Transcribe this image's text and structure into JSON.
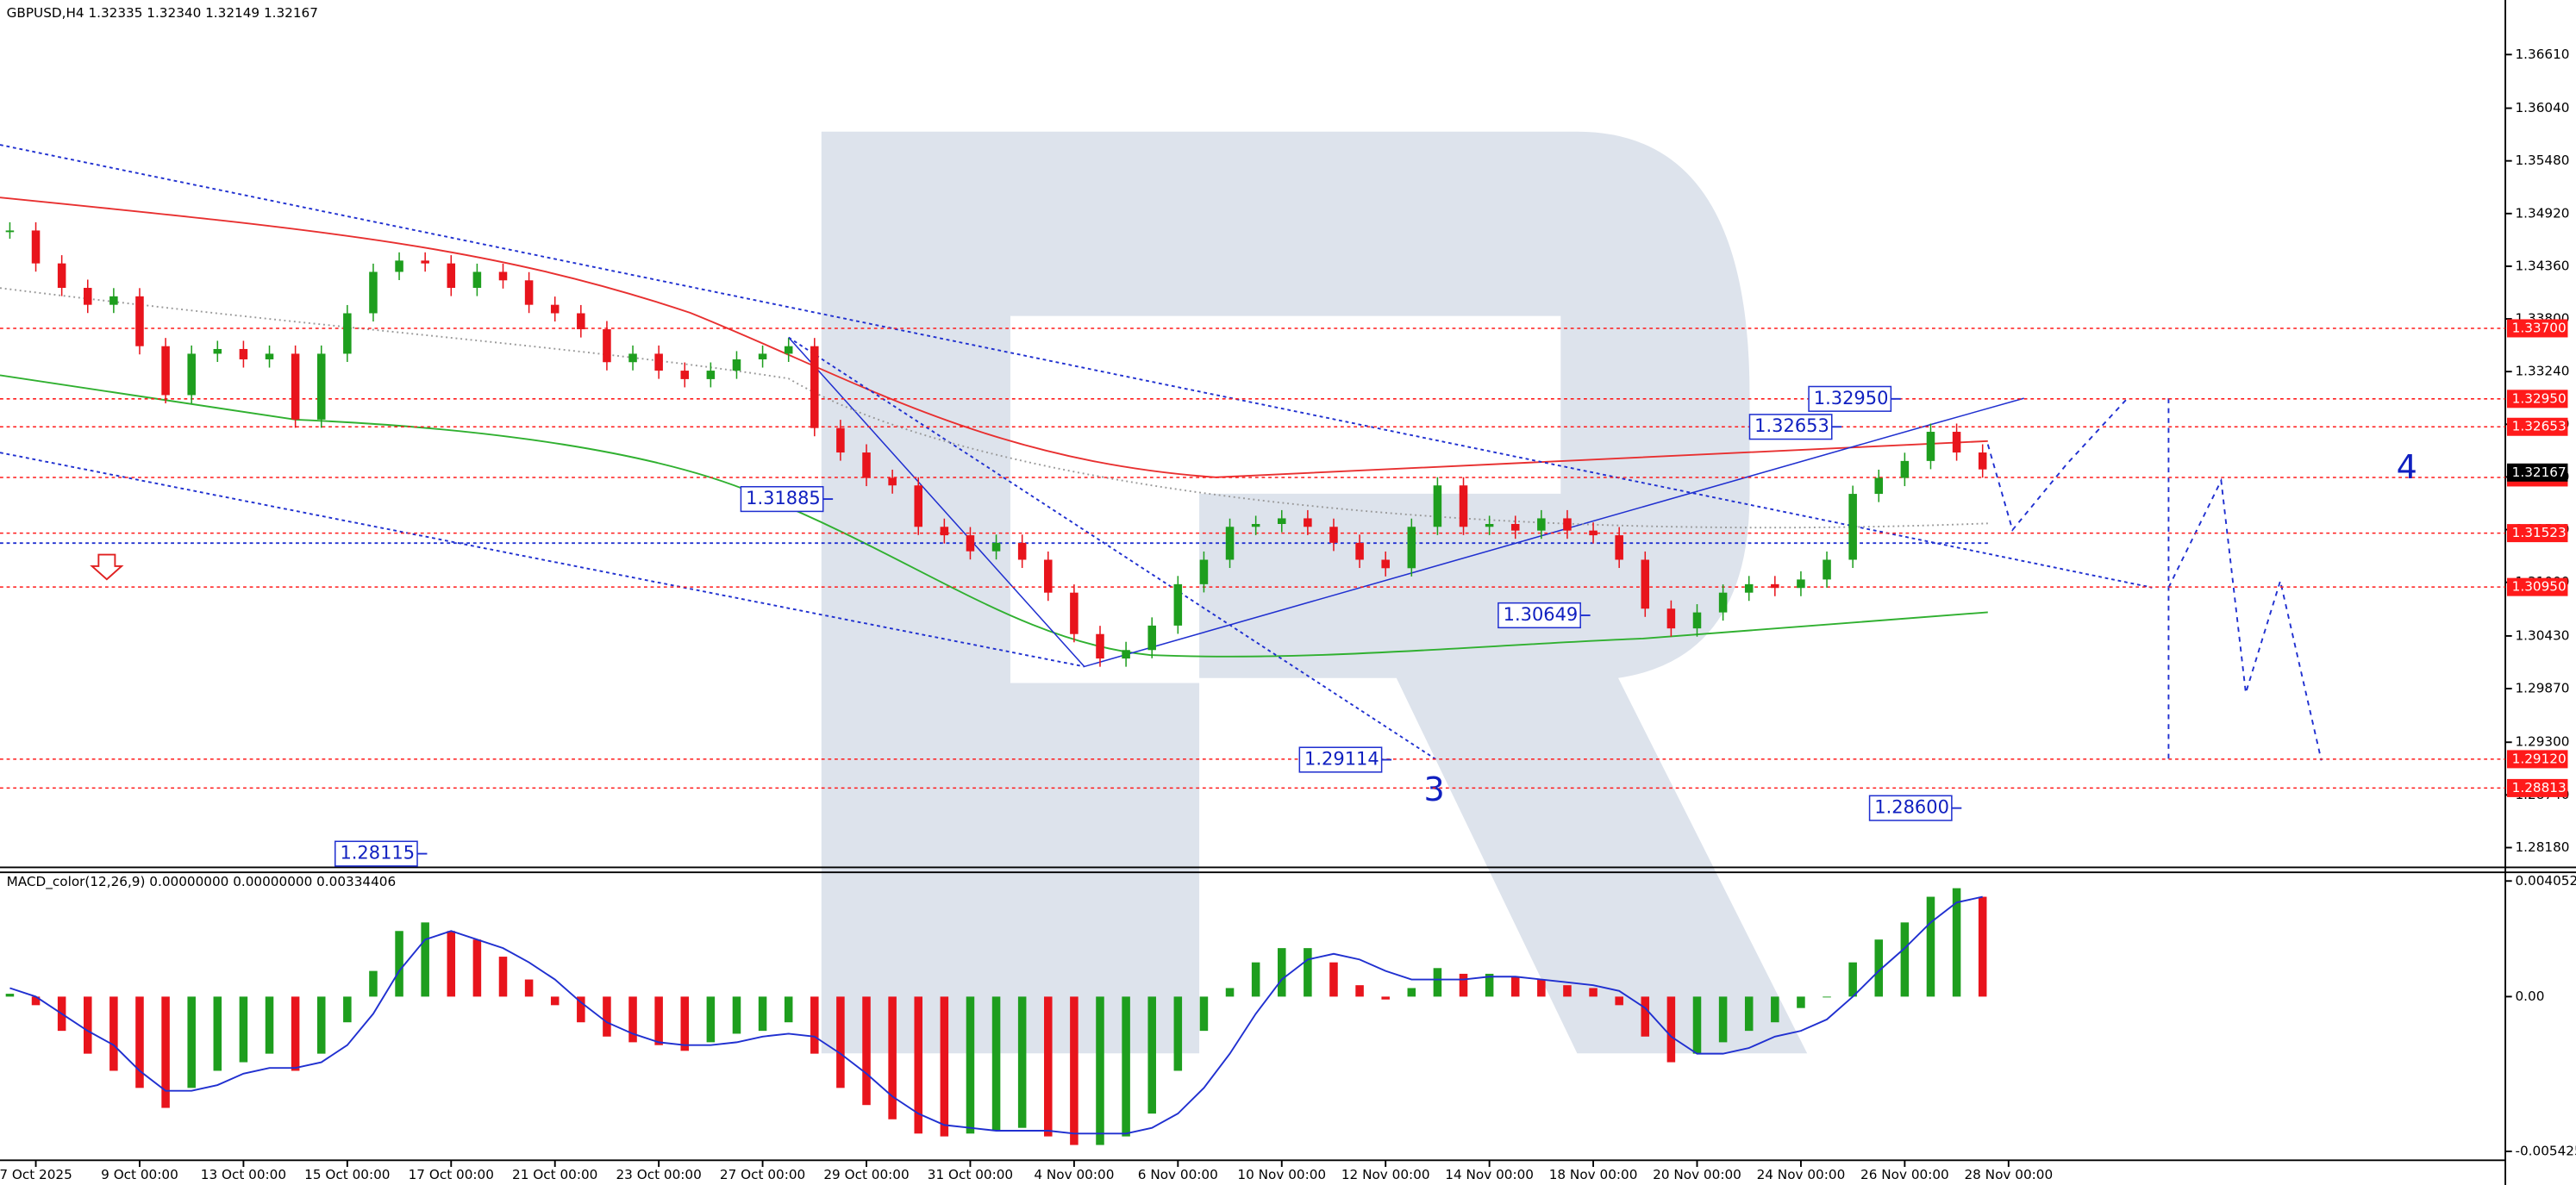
{
  "chart_data": [
    {
      "type": "candlestick",
      "title": "GBPUSD,H4  1.32335 1.32340 1.32149 1.32167",
      "up_color": "#1e9e1e",
      "down_color": "#e8141c",
      "categories": [
        null,
        "7 Oct 2025",
        null,
        null,
        null,
        "9 Oct 00:00",
        null,
        null,
        null,
        "13 Oct 00:00",
        null,
        null,
        null,
        "15 Oct 00:00",
        null,
        null,
        null,
        "17 Oct 00:00",
        null,
        null,
        null,
        "21 Oct 00:00",
        null,
        null,
        null,
        "23 Oct 00:00",
        null,
        null,
        null,
        "27 Oct 00:00",
        null,
        null,
        null,
        "29 Oct 00:00",
        null,
        null,
        null,
        "31 Oct 00:00",
        null,
        null,
        null,
        "4 Nov 00:00",
        null,
        null,
        null,
        "6 Nov 00:00",
        null,
        null,
        null,
        "10 Nov 00:00",
        null,
        null,
        null,
        "12 Nov 00:00",
        null,
        null,
        null,
        "14 Nov 00:00",
        null,
        null,
        null,
        "18 Nov 00:00",
        null,
        null,
        null,
        "20 Nov 00:00",
        null,
        null,
        null,
        "24 Nov 00:00",
        null,
        null,
        null,
        "26 Nov 00:00",
        null,
        null,
        null,
        "28 Nov 00:00"
      ],
      "closes": [
        1.3474,
        1.3439,
        1.3413,
        1.3395,
        1.3404,
        1.3351,
        1.3299,
        1.3343,
        1.3348,
        1.3337,
        1.3343,
        1.3273,
        1.3343,
        1.3386,
        1.343,
        1.3442,
        1.3439,
        1.3413,
        1.343,
        1.3421,
        1.3395,
        1.3386,
        1.3369,
        1.3334,
        1.3343,
        1.3325,
        1.3316,
        1.3325,
        1.3337,
        1.3343,
        1.3351,
        1.3264,
        1.3238,
        1.3211,
        1.3203,
        1.3159,
        1.315,
        1.3133,
        1.3142,
        1.3124,
        1.3089,
        1.3045,
        1.3019,
        1.3028,
        1.3054,
        1.3098,
        1.3124,
        1.3159,
        1.3162,
        1.3168,
        1.3159,
        1.3142,
        1.3124,
        1.3115,
        1.3159,
        1.3203,
        1.3159,
        1.3162,
        1.3155,
        1.3168,
        1.3155,
        1.315,
        1.3124,
        1.3072,
        1.3051,
        1.3068,
        1.3089,
        1.3098,
        1.3094,
        1.3103,
        1.3124,
        1.3194,
        1.3211,
        1.3229,
        1.326,
        1.3238,
        1.322,
        null
      ],
      "ylim": [
        1.2797,
        1.3719
      ],
      "yticks": [
        {
          "value": 1.3661,
          "label": "1.36610"
        },
        {
          "value": 1.3604,
          "label": "1.36040"
        },
        {
          "value": 1.3548,
          "label": "1.35480"
        },
        {
          "value": 1.3492,
          "label": "1.34920"
        },
        {
          "value": 1.3436,
          "label": "1.34360"
        },
        {
          "value": 1.338,
          "label": "1.33800"
        },
        {
          "value": 1.3324,
          "label": "1.33240"
        },
        {
          "value": 1.3268,
          "label": "1.32680"
        },
        {
          "value": 1.3212,
          "label": "1.32120"
        },
        {
          "value": 1.3156,
          "label": "1.31560"
        },
        {
          "value": 1.31,
          "label": "1.31000"
        },
        {
          "value": 1.3043,
          "label": "1.30430"
        },
        {
          "value": 1.2987,
          "label": "1.29870"
        },
        {
          "value": 1.293,
          "label": "1.29300"
        },
        {
          "value": 1.2874,
          "label": "1.28740"
        },
        {
          "value": 1.2818,
          "label": "1.28180"
        }
      ],
      "levels": [
        {
          "value": 1.337,
          "label": "1.33700"
        },
        {
          "value": 1.3295,
          "label": "1.32950"
        },
        {
          "value": 1.32653,
          "label": "1.32653"
        },
        {
          "value": 1.32115,
          "label": "1.32115"
        },
        {
          "value": 1.31523,
          "label": "1.31523"
        },
        {
          "value": 1.3095,
          "label": "1.30950"
        },
        {
          "value": 1.2912,
          "label": "1.29120"
        },
        {
          "value": 1.28813,
          "label": "1.28813"
        }
      ],
      "level_color": "#ff1a1a",
      "current_price": {
        "value": 1.32167,
        "label": "1.32167"
      },
      "annotations": [
        {
          "value": 1.3295,
          "label": "1.32950"
        },
        {
          "value": 1.32653,
          "label": "1.32653"
        },
        {
          "value": 1.31885,
          "label": "1.31885"
        },
        {
          "value": 1.30649,
          "label": "1.30649"
        },
        {
          "value": 1.29114,
          "label": "1.29114"
        },
        {
          "value": 1.286,
          "label": "1.28600"
        },
        {
          "value": 1.28115,
          "label": "1.28115"
        }
      ],
      "wave_labels": [
        "3",
        "4"
      ]
    },
    {
      "type": "macd",
      "title": "MACD_color(12,26,9) 0.00000000 0.00000000 0.00334406",
      "up_color": "#1e9e1e",
      "down_color": "#e8141c",
      "signal_color": "#2030d0",
      "values": [
        0.0001,
        -0.0003,
        -0.0012,
        -0.002,
        -0.0026,
        -0.0032,
        -0.0039,
        -0.0032,
        -0.0026,
        -0.0023,
        -0.002,
        -0.0026,
        -0.002,
        -0.0009,
        0.0009,
        0.0023,
        0.0026,
        0.0023,
        0.002,
        0.0014,
        0.0006,
        -0.0003,
        -0.0009,
        -0.0014,
        -0.0016,
        -0.0017,
        -0.0019,
        -0.0016,
        -0.0013,
        -0.0012,
        -0.0009,
        -0.002,
        -0.0032,
        -0.0038,
        -0.0043,
        -0.0048,
        -0.0049,
        -0.0048,
        -0.0047,
        -0.0046,
        -0.0049,
        -0.0052,
        -0.0052,
        -0.0049,
        -0.0041,
        -0.0026,
        -0.0012,
        0.0003,
        0.0012,
        0.0017,
        0.0017,
        0.0012,
        0.0004,
        -0.0001,
        0.0003,
        0.001,
        0.0008,
        0.0008,
        0.0007,
        0.0006,
        0.0004,
        0.0003,
        -0.0003,
        -0.0014,
        -0.0023,
        -0.002,
        -0.0016,
        -0.0012,
        -0.0009,
        -0.0004,
        0,
        0.0012,
        0.002,
        0.0026,
        0.0035,
        0.0038,
        0.0035,
        null
      ],
      "signal": [
        0.0003,
        0,
        -0.0006,
        -0.0012,
        -0.0017,
        -0.0026,
        -0.0033,
        -0.0033,
        -0.0031,
        -0.0027,
        -0.0025,
        -0.0025,
        -0.0023,
        -0.0017,
        -0.0006,
        0.0009,
        0.002,
        0.0023,
        0.002,
        0.0017,
        0.0012,
        0.0006,
        -0.0002,
        -0.0009,
        -0.0013,
        -0.0016,
        -0.0017,
        -0.0017,
        -0.0016,
        -0.0014,
        -0.0013,
        -0.0014,
        -0.002,
        -0.0027,
        -0.0035,
        -0.0041,
        -0.0045,
        -0.0046,
        -0.0047,
        -0.0047,
        -0.0047,
        -0.0048,
        -0.0048,
        -0.0048,
        -0.0046,
        -0.0041,
        -0.0032,
        -0.002,
        -0.0006,
        0.0006,
        0.0013,
        0.0015,
        0.0013,
        0.0009,
        0.0006,
        0.0006,
        0.0006,
        0.0007,
        0.0007,
        0.0006,
        0.0005,
        0.0004,
        0.0002,
        -0.0004,
        -0.0014,
        -0.002,
        -0.002,
        -0.0018,
        -0.0014,
        -0.0012,
        -0.0008,
        0,
        0.0009,
        0.0017,
        0.0026,
        0.0033,
        0.0035,
        null
      ],
      "ylim": [
        -0.00568,
        0.0043
      ],
      "yticks": [
        0.0040525,
        {
          "value": 0,
          "label": "0.00"
        },
        -0.005425
      ]
    }
  ]
}
